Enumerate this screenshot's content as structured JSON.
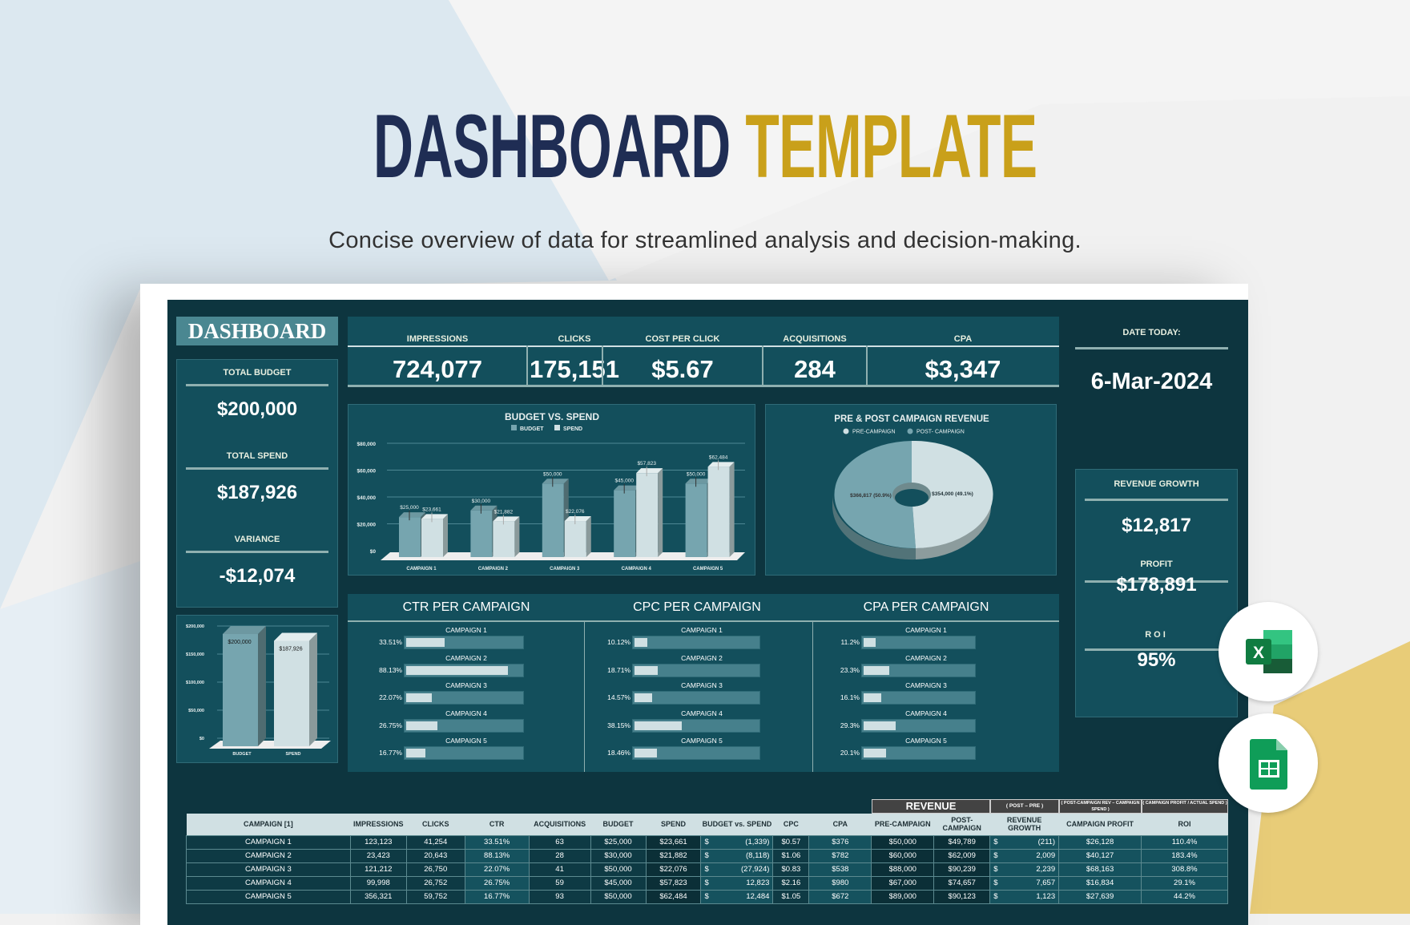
{
  "header": {
    "title_part1": "DASHBOARD",
    "title_part2": "TEMPLATE",
    "subtitle": "Concise overview of data for streamlined analysis and decision-making."
  },
  "colors": {
    "title_navy": "#1f2d54",
    "title_gold": "#c9a01a",
    "dashboard_bg": "#0d353f",
    "panel": "#134f5c",
    "budget_bar": "#76a5af",
    "spend_bar": "#d0e0e3"
  },
  "dashboard_label": "DASHBOARD",
  "kpis": [
    {
      "label": "IMPRESSIONS",
      "value": "724,077"
    },
    {
      "label": "CLICKS",
      "value": "175,151"
    },
    {
      "label": "COST PER CLICK",
      "value": "$5.67"
    },
    {
      "label": "ACQUISITIONS",
      "value": "284"
    },
    {
      "label": "CPA",
      "value": "$3,347"
    }
  ],
  "date": {
    "label": "DATE TODAY:",
    "value": "6-Mar-2024"
  },
  "totals": [
    {
      "label": "TOTAL BUDGET",
      "value": "$200,000"
    },
    {
      "label": "TOTAL SPEND",
      "value": "$187,926"
    },
    {
      "label": "VARIANCE",
      "value": "-$12,074"
    }
  ],
  "revenue_panel": [
    {
      "label": "REVENUE GROWTH",
      "value": "$12,817"
    },
    {
      "label": "PROFIT",
      "value": "$178,891"
    },
    {
      "label": "ROI",
      "value": "95%"
    }
  ],
  "chart_data": [
    {
      "type": "bar",
      "title": "BUDGET VS. SPEND",
      "categories": [
        "CAMPAIGN 1",
        "CAMPAIGN 2",
        "CAMPAIGN 3",
        "CAMPAIGN 4",
        "CAMPAIGN 5"
      ],
      "series": [
        {
          "name": "BUDGET",
          "values": [
            25000,
            30000,
            50000,
            45000,
            50000
          ],
          "labels": [
            "$25,000",
            "$30,000",
            "$50,000",
            "$45,000",
            "$50,000"
          ]
        },
        {
          "name": "SPEND",
          "values": [
            23661,
            21882,
            22076,
            57823,
            62484
          ],
          "labels": [
            "$23,661",
            "$21,882",
            "$22,076",
            "$57,823",
            "$62,484"
          ]
        }
      ],
      "ylim": [
        0,
        80000
      ],
      "yticks": [
        "$0",
        "$20,000",
        "$40,000",
        "$60,000",
        "$80,000"
      ],
      "legend": "top",
      "grid": true
    },
    {
      "type": "pie",
      "title": "PRE & POST CAMPAIGN REVENUE",
      "legend": "top",
      "slices": [
        {
          "name": "PRE-CAMPAIGN",
          "value": 354000,
          "label": "$354,000 (49.1%)"
        },
        {
          "name": "POST- CAMPAIGN",
          "value": 366817,
          "label": "$366,817 (50.9%)"
        }
      ]
    },
    {
      "type": "bar",
      "categories": [
        "BUDGET",
        "SPEND"
      ],
      "values": [
        200000,
        187926
      ],
      "labels": [
        "$200,000",
        "$187,926"
      ],
      "ylim": [
        0,
        200000
      ],
      "yticks": [
        "$0",
        "$50,000",
        "$100,000",
        "$150,000",
        "$200,000"
      ],
      "grid": true
    }
  ],
  "per_campaign": [
    {
      "title": "CTR PER CAMPAIGN",
      "rows": [
        {
          "name": "CAMPAIGN 1",
          "label": "33.51%",
          "value": 33.51
        },
        {
          "name": "CAMPAIGN 2",
          "label": "88.13%",
          "value": 88.13
        },
        {
          "name": "CAMPAIGN 3",
          "label": "22.07%",
          "value": 22.07
        },
        {
          "name": "CAMPAIGN 4",
          "label": "26.75%",
          "value": 26.75
        },
        {
          "name": "CAMPAIGN 5",
          "label": "16.77%",
          "value": 16.77
        }
      ]
    },
    {
      "title": "CPC PER CAMPAIGN",
      "rows": [
        {
          "name": "CAMPAIGN 1",
          "label": "10.12%",
          "value": 10.12
        },
        {
          "name": "CAMPAIGN 2",
          "label": "18.71%",
          "value": 18.71
        },
        {
          "name": "CAMPAIGN 3",
          "label": "14.57%",
          "value": 14.57
        },
        {
          "name": "CAMPAIGN 4",
          "label": "38.15%",
          "value": 38.15
        },
        {
          "name": "CAMPAIGN 5",
          "label": "18.46%",
          "value": 18.46
        }
      ]
    },
    {
      "title": "CPA PER CAMPAIGN",
      "rows": [
        {
          "name": "CAMPAIGN 1",
          "label": "11.2%",
          "value": 11.2
        },
        {
          "name": "CAMPAIGN 2",
          "label": "23.3%",
          "value": 23.3
        },
        {
          "name": "CAMPAIGN 3",
          "label": "16.1%",
          "value": 16.1
        },
        {
          "name": "CAMPAIGN 4",
          "label": "29.3%",
          "value": 29.3
        },
        {
          "name": "CAMPAIGN 5",
          "label": "20.1%",
          "value": 20.1
        }
      ]
    }
  ],
  "table": {
    "group_headers": {
      "revenue": "REVENUE",
      "growth_note": "( POST – PRE )",
      "profit_note": "( POST-CAMPAIGN REV – CAMPAIGN SPEND )",
      "roi_note": "( CAMPAIGN PROFIT / ACTUAL SPEND )"
    },
    "columns": [
      "CAMPAIGN [1]",
      "IMPRESSIONS",
      "CLICKS",
      "CTR",
      "ACQUISITIONS",
      "BUDGET",
      "SPEND",
      "BUDGET vs. SPEND",
      "CPC",
      "CPA",
      "PRE-CAMPAIGN",
      "POST-CAMPAIGN",
      "REVENUE GROWTH",
      "CAMPAIGN PROFIT",
      "ROI"
    ],
    "rows": [
      [
        "CAMPAIGN 1",
        "123,123",
        "41,254",
        "33.51%",
        "63",
        "$25,000",
        "$23,661",
        "(1,339)",
        "$0.57",
        "$376",
        "$50,000",
        "$49,789",
        "(211)",
        "$26,128",
        "110.4%"
      ],
      [
        "CAMPAIGN 2",
        "23,423",
        "20,643",
        "88.13%",
        "28",
        "$30,000",
        "$21,882",
        "(8,118)",
        "$1.06",
        "$782",
        "$60,000",
        "$62,009",
        "2,009",
        "$40,127",
        "183.4%"
      ],
      [
        "CAMPAIGN 3",
        "121,212",
        "26,750",
        "22.07%",
        "41",
        "$50,000",
        "$22,076",
        "(27,924)",
        "$0.83",
        "$538",
        "$88,000",
        "$90,239",
        "2,239",
        "$68,163",
        "308.8%"
      ],
      [
        "CAMPAIGN 4",
        "99,998",
        "26,752",
        "26.75%",
        "59",
        "$45,000",
        "$57,823",
        "12,823",
        "$2.16",
        "$980",
        "$67,000",
        "$74,657",
        "7,657",
        "$16,834",
        "29.1%"
      ],
      [
        "CAMPAIGN 5",
        "356,321",
        "59,752",
        "16.77%",
        "93",
        "$50,000",
        "$62,484",
        "12,484",
        "$1.05",
        "$672",
        "$89,000",
        "$90,123",
        "1,123",
        "$27,639",
        "44.2%"
      ]
    ],
    "currency_symbol": "$"
  },
  "app_icons": [
    {
      "name": "excel-icon",
      "letter": "X"
    },
    {
      "name": "google-sheets-icon"
    }
  ]
}
